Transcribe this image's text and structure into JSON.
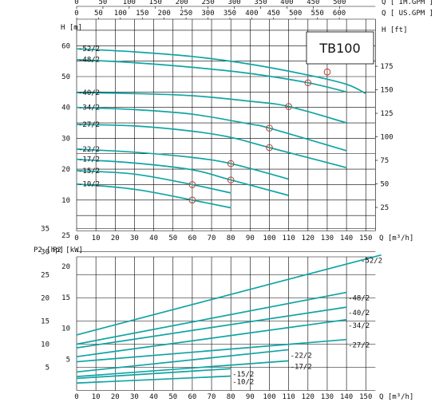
{
  "chart_data": [
    {
      "type": "line",
      "title": "",
      "model": "TB100",
      "xlabel": "Q [m³/h]",
      "ylabel_left": "H [m]",
      "ylabel_right": "H [ft]",
      "top_axis_1_label": "Q [ IM.GPM ]",
      "top_axis_2_label": "Q [ US.GPM ]",
      "xlim": [
        0,
        150
      ],
      "ylim": [
        0,
        65
      ],
      "grid": true,
      "x_ticks": [
        0,
        10,
        20,
        30,
        40,
        50,
        60,
        70,
        80,
        90,
        100,
        110,
        120,
        130,
        140,
        150
      ],
      "y_ticks_left": [
        10,
        20,
        30,
        40,
        50,
        60
      ],
      "y_ticks_right": [
        25,
        50,
        75,
        100,
        125,
        150,
        175
      ],
      "top_ticks_im": [
        0,
        50,
        100,
        150,
        200,
        250,
        300,
        350,
        400,
        450,
        500
      ],
      "top_ticks_us": [
        0,
        50,
        100,
        150,
        200,
        250,
        300,
        350,
        400,
        450,
        500,
        550,
        600
      ],
      "series": [
        {
          "name": "-52/2",
          "x": [
            0,
            30,
            60,
            90,
            120,
            140,
            150
          ],
          "y": [
            59,
            58,
            56.5,
            54,
            50.5,
            47.5,
            44.5
          ],
          "bep": [
            130,
            51.5
          ]
        },
        {
          "name": "-48/2",
          "x": [
            0,
            30,
            60,
            90,
            120,
            140
          ],
          "y": [
            55.5,
            54.5,
            53,
            51,
            48,
            45
          ],
          "bep": [
            120,
            48
          ]
        },
        {
          "name": "-40/2",
          "x": [
            0,
            30,
            60,
            90,
            110,
            140
          ],
          "y": [
            44.8,
            44.5,
            43.8,
            42,
            40.3,
            35
          ],
          "bep": [
            110,
            40.3
          ]
        },
        {
          "name": "-34/2",
          "x": [
            0,
            30,
            60,
            90,
            100,
            140
          ],
          "y": [
            40,
            39.3,
            37.8,
            34.6,
            33.3,
            26
          ],
          "bep": [
            100,
            33.3
          ]
        },
        {
          "name": "-27/2",
          "x": [
            0,
            30,
            60,
            80,
            100,
            140
          ],
          "y": [
            34.5,
            34,
            32.3,
            30.3,
            27,
            20.5
          ],
          "bep": [
            100,
            27
          ]
        },
        {
          "name": "-22/2",
          "x": [
            0,
            30,
            60,
            80,
            110
          ],
          "y": [
            26.5,
            25.5,
            23.8,
            21.8,
            16.8
          ],
          "bep": [
            80,
            21.8
          ]
        },
        {
          "name": "-17/2",
          "x": [
            0,
            30,
            60,
            80,
            110
          ],
          "y": [
            23.2,
            22,
            19.8,
            16.5,
            11.5
          ],
          "bep": [
            80,
            16.5
          ]
        },
        {
          "name": "-15/2",
          "x": [
            0,
            30,
            60,
            80
          ],
          "y": [
            19.5,
            18.4,
            15,
            12.3
          ],
          "bep": [
            60,
            15
          ]
        },
        {
          "name": "-10/2",
          "x": [
            0,
            30,
            60,
            80
          ],
          "y": [
            15.2,
            13.5,
            10,
            7.5
          ],
          "bep": [
            60,
            10
          ]
        }
      ]
    },
    {
      "type": "line",
      "title": "",
      "xlabel": "Q [m³/h]",
      "ylabel_left": "P2 [hp]",
      "ylabel_right": "P2 [kW]",
      "xlim": [
        0,
        160
      ],
      "ylim": [
        0,
        40
      ],
      "grid": true,
      "x_ticks": [
        0,
        10,
        20,
        30,
        40,
        50,
        60,
        70,
        80,
        90,
        100,
        110,
        120,
        130,
        140,
        150
      ],
      "y_ticks_hp": [
        5,
        10,
        15,
        20,
        25,
        30,
        35
      ],
      "y_ticks_kw": [
        5,
        10,
        15,
        20,
        25
      ],
      "series": [
        {
          "name": "-52/2",
          "x": [
            0,
            160
          ],
          "y": [
            12,
            29.5
          ]
        },
        {
          "name": "-48/2",
          "x": [
            0,
            140
          ],
          "y": [
            10,
            21.2
          ]
        },
        {
          "name": "-40/2",
          "x": [
            0,
            140
          ],
          "y": [
            9.2,
            18
          ]
        },
        {
          "name": "-34/2",
          "x": [
            0,
            140
          ],
          "y": [
            7.3,
            15.3
          ]
        },
        {
          "name": "-27/2",
          "x": [
            0,
            140
          ],
          "y": [
            6.2,
            11
          ]
        },
        {
          "name": "-22/2",
          "x": [
            0,
            110
          ],
          "y": [
            4,
            8.8
          ]
        },
        {
          "name": "-17/2",
          "x": [
            0,
            110
          ],
          "y": [
            3,
            6.4
          ]
        },
        {
          "name": "-15/2",
          "x": [
            0,
            80
          ],
          "y": [
            2.6,
            4.7
          ]
        },
        {
          "name": "-10/2",
          "x": [
            0,
            80
          ],
          "y": [
            1.6,
            3.1
          ]
        }
      ]
    }
  ]
}
